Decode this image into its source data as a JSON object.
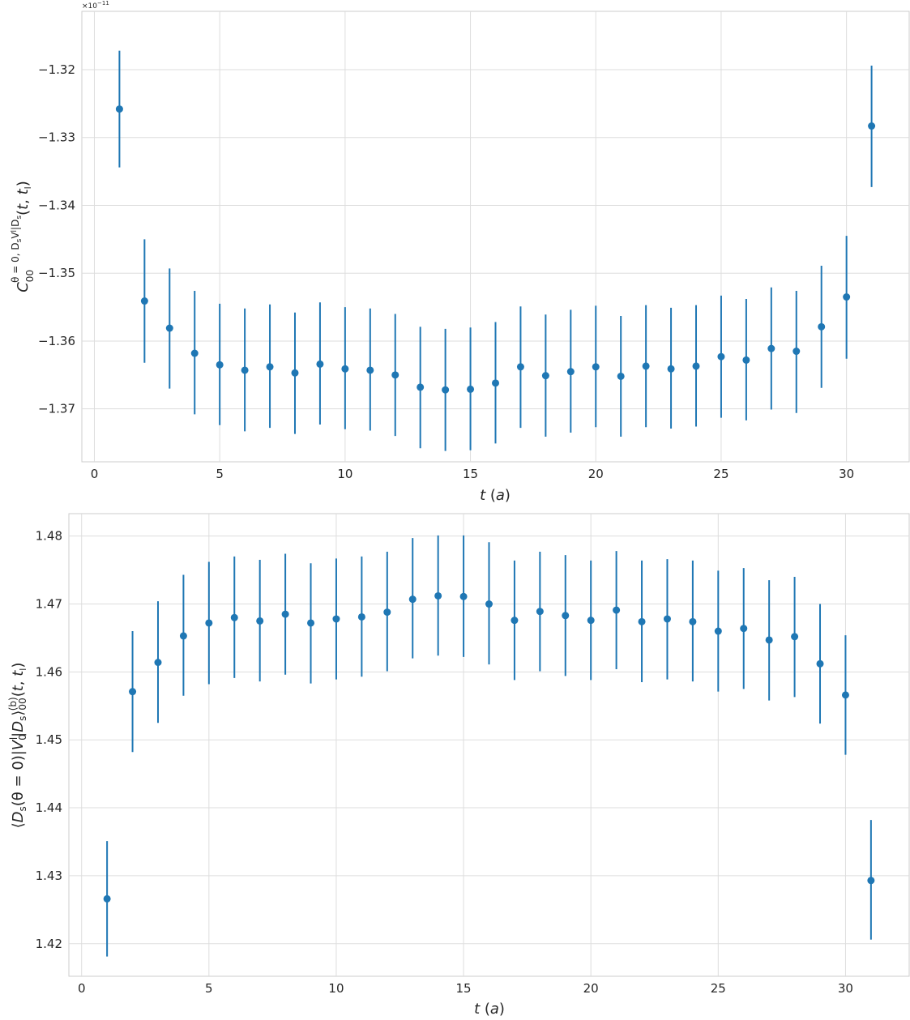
{
  "chart_data": [
    {
      "type": "scatter",
      "style": "errorbar",
      "color": "#1f77b4",
      "grid": true,
      "xlabel": "t (a)",
      "ylabel": "C_00^{θ=0, D_s V_0^l D_s}(t, t_l)",
      "y_offset_text": "×10⁻¹¹",
      "xlim": [
        -0.5,
        32.5
      ],
      "ylim": [
        -1.3778,
        -1.3114
      ],
      "xticks": [
        0,
        5,
        10,
        15,
        20,
        25,
        30
      ],
      "yticks": [
        -1.37,
        -1.36,
        -1.35,
        -1.34,
        -1.33,
        -1.32
      ],
      "ytick_labels": [
        "−1.37",
        "−1.36",
        "−1.35",
        "−1.34",
        "−1.33",
        "−1.32"
      ],
      "x": [
        1,
        2,
        3,
        4,
        5,
        6,
        7,
        8,
        9,
        10,
        11,
        12,
        13,
        14,
        15,
        16,
        17,
        18,
        19,
        20,
        21,
        22,
        23,
        24,
        25,
        26,
        27,
        28,
        29,
        30,
        31
      ],
      "y": [
        -1.3258,
        -1.3541,
        -1.3581,
        -1.3618,
        -1.3635,
        -1.3643,
        -1.3638,
        -1.3647,
        -1.3634,
        -1.3641,
        -1.3643,
        -1.365,
        -1.3668,
        -1.3672,
        -1.3671,
        -1.3662,
        -1.3638,
        -1.3651,
        -1.3645,
        -1.3638,
        -1.3652,
        -1.3637,
        -1.3641,
        -1.3637,
        -1.3623,
        -1.3628,
        -1.3611,
        -1.3615,
        -1.3579,
        -1.3535,
        -1.3283
      ],
      "yerr_low": [
        -1.3344,
        -1.3632,
        -1.367,
        -1.3708,
        -1.3724,
        -1.3733,
        -1.3728,
        -1.3737,
        -1.3723,
        -1.373,
        -1.3732,
        -1.374,
        -1.3758,
        -1.3762,
        -1.3761,
        -1.3751,
        -1.3728,
        -1.3741,
        -1.3735,
        -1.3727,
        -1.3741,
        -1.3727,
        -1.3729,
        -1.3726,
        -1.3713,
        -1.3717,
        -1.3701,
        -1.3706,
        -1.3669,
        -1.3626,
        -1.3373
      ],
      "yerr_high": [
        -1.3172,
        -1.345,
        -1.3493,
        -1.3526,
        -1.3545,
        -1.3552,
        -1.3546,
        -1.3558,
        -1.3543,
        -1.355,
        -1.3552,
        -1.356,
        -1.3579,
        -1.3582,
        -1.358,
        -1.3572,
        -1.3549,
        -1.3561,
        -1.3554,
        -1.3548,
        -1.3563,
        -1.3547,
        -1.3551,
        -1.3547,
        -1.3533,
        -1.3538,
        -1.3521,
        -1.3526,
        -1.3489,
        -1.3445,
        -1.3194
      ]
    },
    {
      "type": "scatter",
      "style": "errorbar",
      "color": "#1f77b4",
      "grid": true,
      "xlabel": "t (a)",
      "ylabel": "⟨D_s(θ=0)|V_0^l|D_s⟩_00^(b)(t, t_l)",
      "xlim": [
        -0.5,
        32.5
      ],
      "ylim": [
        1.4152,
        1.4833
      ],
      "xticks": [
        0,
        5,
        10,
        15,
        20,
        25,
        30
      ],
      "yticks": [
        1.42,
        1.43,
        1.44,
        1.45,
        1.46,
        1.47,
        1.48
      ],
      "ytick_labels": [
        "1.42",
        "1.43",
        "1.44",
        "1.45",
        "1.46",
        "1.47",
        "1.48"
      ],
      "x": [
        1,
        2,
        3,
        4,
        5,
        6,
        7,
        8,
        9,
        10,
        11,
        12,
        13,
        14,
        15,
        16,
        17,
        18,
        19,
        20,
        21,
        22,
        23,
        24,
        25,
        26,
        27,
        28,
        29,
        30,
        31
      ],
      "y": [
        1.4266,
        1.4571,
        1.4614,
        1.4653,
        1.4672,
        1.468,
        1.4675,
        1.4685,
        1.4672,
        1.4678,
        1.4681,
        1.4688,
        1.4707,
        1.4712,
        1.4711,
        1.47,
        1.4676,
        1.4689,
        1.4683,
        1.4676,
        1.4691,
        1.4674,
        1.4678,
        1.4674,
        1.466,
        1.4664,
        1.4647,
        1.4652,
        1.4612,
        1.4566,
        1.4293
      ],
      "yerr_low": [
        1.4181,
        1.4482,
        1.4525,
        1.4565,
        1.4582,
        1.4591,
        1.4586,
        1.4596,
        1.4583,
        1.4589,
        1.4593,
        1.4601,
        1.462,
        1.4624,
        1.4622,
        1.4611,
        1.4588,
        1.4601,
        1.4594,
        1.4588,
        1.4604,
        1.4585,
        1.4589,
        1.4586,
        1.4571,
        1.4575,
        1.4558,
        1.4563,
        1.4524,
        1.4478,
        1.4206
      ],
      "yerr_high": [
        1.4351,
        1.466,
        1.4704,
        1.4743,
        1.4762,
        1.477,
        1.4765,
        1.4774,
        1.476,
        1.4767,
        1.477,
        1.4777,
        1.4797,
        1.4801,
        1.4801,
        1.4791,
        1.4764,
        1.4777,
        1.4772,
        1.4764,
        1.4778,
        1.4764,
        1.4766,
        1.4764,
        1.4749,
        1.4753,
        1.4735,
        1.474,
        1.47,
        1.4654,
        1.4382
      ]
    }
  ]
}
